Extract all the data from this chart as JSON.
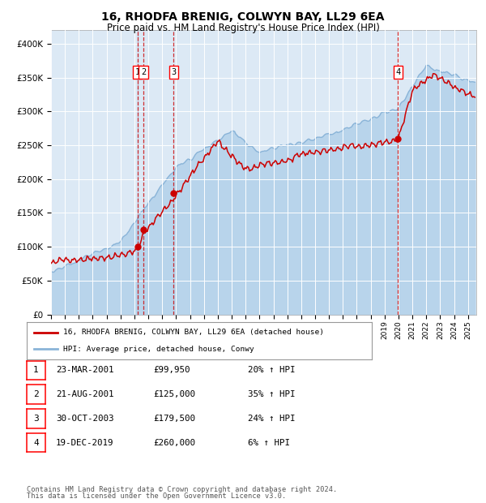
{
  "title": "16, RHODFA BRENIG, COLWYN BAY, LL29 6EA",
  "subtitle": "Price paid vs. HM Land Registry's House Price Index (HPI)",
  "legend_line1": "16, RHODFA BRENIG, COLWYN BAY, LL29 6EA (detached house)",
  "legend_line2": "HPI: Average price, detached house, Conwy",
  "footer1": "Contains HM Land Registry data © Crown copyright and database right 2024.",
  "footer2": "This data is licensed under the Open Government Licence v3.0.",
  "transactions": [
    {
      "num": 1,
      "date": "23-MAR-2001",
      "price": 99950,
      "pct": "20%",
      "dir": "↑",
      "date_decimal": 2001.22
    },
    {
      "num": 2,
      "date": "21-AUG-2001",
      "price": 125000,
      "pct": "35%",
      "dir": "↑",
      "date_decimal": 2001.64
    },
    {
      "num": 3,
      "date": "30-OCT-2003",
      "price": 179500,
      "pct": "24%",
      "dir": "↑",
      "date_decimal": 2003.83
    },
    {
      "num": 4,
      "date": "19-DEC-2019",
      "price": 260000,
      "pct": "6%",
      "dir": "↑",
      "date_decimal": 2019.97
    }
  ],
  "hpi_color": "#8ab4d8",
  "hpi_fill_color": "#b8d4eb",
  "price_color": "#cc0000",
  "vline_color": "#cc0000",
  "vline_color2": "#9999bb",
  "plot_bg": "#dce9f5",
  "ylim": [
    0,
    420000
  ],
  "xlim_start": 1995.0,
  "xlim_end": 2025.6,
  "yticks": [
    0,
    50000,
    100000,
    150000,
    200000,
    250000,
    300000,
    350000,
    400000
  ],
  "title_fontsize": 10,
  "subtitle_fontsize": 8.5
}
